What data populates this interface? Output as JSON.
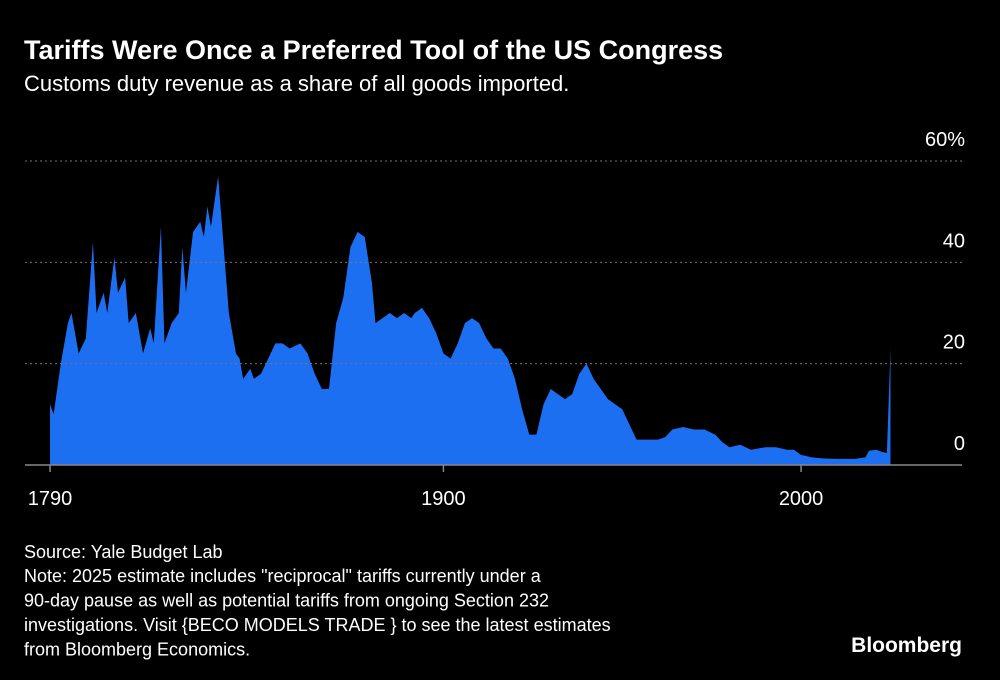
{
  "chart_data": {
    "type": "area",
    "title": "Tariffs Were Once a Preferred Tool of the US Congress",
    "subtitle": "Customs duty revenue as a share of all goods imported.",
    "color": "#1d6ff2",
    "grid": true,
    "xlim": [
      1783,
      2045
    ],
    "xticks": [
      1790,
      1900,
      2000
    ],
    "ylim": [
      0,
      60
    ],
    "yticks": [
      0,
      20,
      40,
      {
        "value": 60,
        "label": "60%"
      }
    ],
    "x": [
      1790,
      1791,
      1793,
      1795,
      1796,
      1798,
      1800,
      1802,
      1803,
      1805,
      1806,
      1808,
      1809,
      1811,
      1812,
      1814,
      1816,
      1818,
      1819,
      1821,
      1822,
      1824,
      1826,
      1827,
      1828,
      1830,
      1832,
      1833,
      1834,
      1835,
      1836,
      1837,
      1838,
      1840,
      1842,
      1843,
      1844,
      1846,
      1847,
      1849,
      1851,
      1853,
      1855,
      1857,
      1860,
      1862,
      1864,
      1866,
      1868,
      1870,
      1872,
      1874,
      1876,
      1878,
      1880,
      1881,
      1883,
      1885,
      1887,
      1889,
      1891,
      1892,
      1894,
      1896,
      1898,
      1900,
      1902,
      1904,
      1906,
      1908,
      1910,
      1912,
      1914,
      1916,
      1918,
      1920,
      1922,
      1924,
      1926,
      1928,
      1930,
      1932,
      1934,
      1936,
      1938,
      1940,
      1942,
      1944,
      1946,
      1948,
      1950,
      1952,
      1954,
      1957,
      1960,
      1962,
      1964,
      1967,
      1970,
      1973,
      1976,
      1978,
      1980,
      1983,
      1986,
      1990,
      1993,
      1996,
      1998,
      2000,
      2003,
      2006,
      2010,
      2015,
      2018,
      2019,
      2021,
      2023,
      2024,
      2025
    ],
    "values": [
      12,
      10,
      20,
      28,
      30,
      22,
      25,
      44,
      30,
      34,
      30,
      41,
      34,
      37,
      28,
      30,
      22,
      27,
      24,
      47,
      24,
      28,
      30,
      43,
      34,
      46,
      48,
      45,
      51,
      47,
      52,
      57,
      48,
      30,
      22,
      21,
      17,
      19,
      17,
      18,
      21,
      24,
      24,
      23,
      24,
      22,
      18,
      15,
      15,
      28,
      33,
      43,
      46,
      45,
      36,
      28,
      29,
      30,
      29,
      30,
      29,
      30,
      31,
      29,
      26,
      22,
      21,
      24,
      28,
      29,
      28,
      25,
      23,
      23,
      21,
      17,
      11,
      6,
      6,
      12,
      15,
      14,
      13,
      14,
      18,
      20,
      17,
      15,
      13,
      12,
      11,
      8,
      5,
      5,
      5,
      5.5,
      7,
      7.5,
      7,
      7,
      6,
      4.5,
      3.5,
      4,
      3,
      3.5,
      3.5,
      3,
      3,
      2,
      1.5,
      1.3,
      1.2,
      1.2,
      1.5,
      2.8,
      3,
      2.5,
      2.4,
      23
    ],
    "source": "Source: Yale Budget Lab",
    "note": [
      "Note: 2025 estimate includes \"reciprocal\" tariffs currently under a",
      "90-day pause as well as potential tariffs from ongoing Section 232",
      "investigations. Visit {BECO MODELS TRADE } to see the latest estimates",
      "from Bloomberg Economics."
    ],
    "logo": "Bloomberg"
  }
}
